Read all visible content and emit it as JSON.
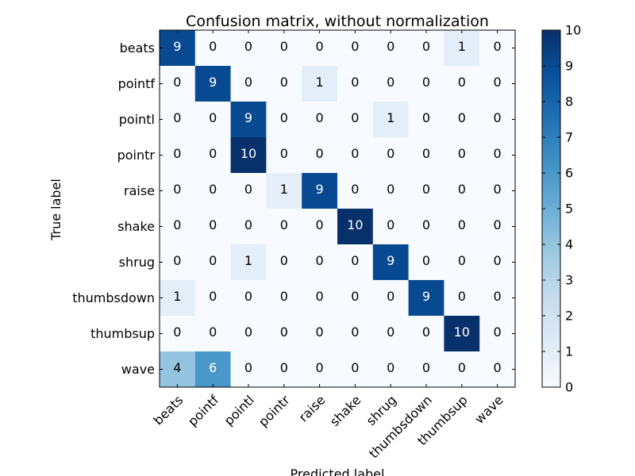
{
  "chart_data": {
    "type": "heatmap",
    "title": "Confusion matrix, without normalization",
    "xlabel": "Predicted label",
    "ylabel": "True label",
    "row_labels": [
      "beats",
      "pointf",
      "pointl",
      "pointr",
      "raise",
      "shake",
      "shrug",
      "thumbsdown",
      "thumbsup",
      "wave"
    ],
    "col_labels": [
      "beats",
      "pointf",
      "pointl",
      "pointr",
      "raise",
      "shake",
      "shrug",
      "thumbsdown",
      "thumbsup",
      "wave"
    ],
    "values": [
      [
        9,
        0,
        0,
        0,
        0,
        0,
        0,
        0,
        1,
        0
      ],
      [
        0,
        9,
        0,
        0,
        1,
        0,
        0,
        0,
        0,
        0
      ],
      [
        0,
        0,
        9,
        0,
        0,
        0,
        1,
        0,
        0,
        0
      ],
      [
        0,
        0,
        10,
        0,
        0,
        0,
        0,
        0,
        0,
        0
      ],
      [
        0,
        0,
        0,
        1,
        9,
        0,
        0,
        0,
        0,
        0
      ],
      [
        0,
        0,
        0,
        0,
        0,
        10,
        0,
        0,
        0,
        0
      ],
      [
        0,
        0,
        1,
        0,
        0,
        0,
        9,
        0,
        0,
        0
      ],
      [
        1,
        0,
        0,
        0,
        0,
        0,
        0,
        9,
        0,
        0
      ],
      [
        0,
        0,
        0,
        0,
        0,
        0,
        0,
        0,
        10,
        0
      ],
      [
        4,
        6,
        0,
        0,
        0,
        0,
        0,
        0,
        0,
        0
      ]
    ],
    "colormap": "Blues",
    "value_range": [
      0,
      10
    ],
    "colorbar_ticks": [
      "0",
      "1",
      "2",
      "3",
      "4",
      "5",
      "6",
      "7",
      "8",
      "9",
      "10"
    ],
    "grid": false
  }
}
